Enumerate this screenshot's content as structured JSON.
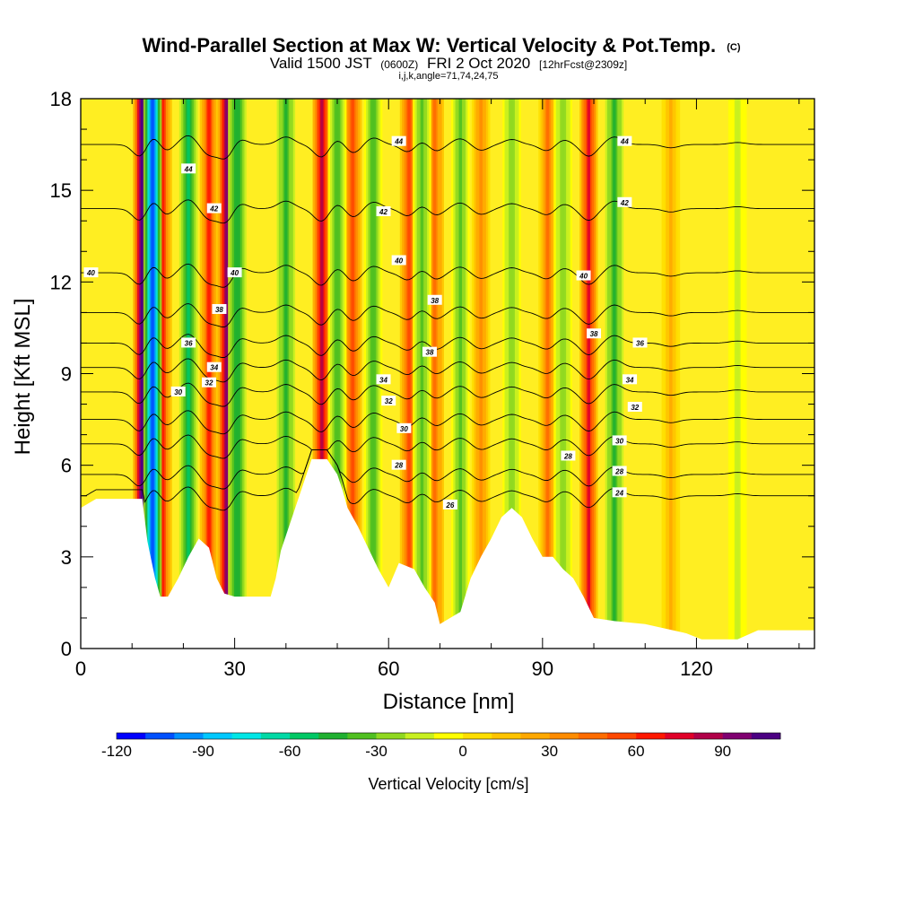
{
  "chart_data": {
    "type": "heatmap",
    "title": "Wind-Parallel Section at Max W: Vertical Velocity & Pot.Temp.",
    "title_mark": "(C)",
    "subtitle_parts": [
      "Valid 1500 JST",
      "(0600Z)",
      "FRI 2 Oct 2020",
      "[12hrFcst@2309z]"
    ],
    "subtitle2": "i,j,k,angle=71,74,24,75",
    "xlabel": "Distance [nm]",
    "ylabel": "Height [Kft MSL]",
    "xlim": [
      0,
      143
    ],
    "ylim": [
      0,
      18
    ],
    "x_ticks": [
      0,
      30,
      60,
      90,
      120
    ],
    "y_ticks": [
      0,
      3,
      6,
      9,
      12,
      15,
      18
    ],
    "colorbar": {
      "label": "Vertical Velocity [cm/s]",
      "ticks": [
        -120,
        -90,
        -60,
        -30,
        0,
        30,
        60,
        90
      ],
      "range": [
        -120,
        110
      ],
      "colors": [
        "#0000ff",
        "#0050ff",
        "#0090ff",
        "#00c8ff",
        "#00e6e6",
        "#00d9a5",
        "#00c864",
        "#20b030",
        "#50c020",
        "#90d820",
        "#c8f020",
        "#ffff00",
        "#ffde00",
        "#ffc400",
        "#ffa800",
        "#ff8c00",
        "#ff6c00",
        "#ff4800",
        "#ff1800",
        "#e00028",
        "#b00048",
        "#800070",
        "#4b0082"
      ]
    },
    "updrafts": [
      {
        "x": 12,
        "w": 110
      },
      {
        "x": 16,
        "w": 60
      },
      {
        "x": 25,
        "w": 60
      },
      {
        "x": 28.5,
        "w": 95
      },
      {
        "x": 47,
        "w": 80
      },
      {
        "x": 53,
        "w": 55
      },
      {
        "x": 64,
        "w": 50
      },
      {
        "x": 69,
        "w": 45
      },
      {
        "x": 78,
        "w": 35
      },
      {
        "x": 91,
        "w": 40
      },
      {
        "x": 99,
        "w": 70
      },
      {
        "x": 115,
        "w": 20
      }
    ],
    "downdrafts": [
      {
        "x": 14,
        "w": -110
      },
      {
        "x": 21,
        "w": -55
      },
      {
        "x": 30.5,
        "w": -50
      },
      {
        "x": 40,
        "w": -45
      },
      {
        "x": 50,
        "w": -40
      },
      {
        "x": 57,
        "w": -40
      },
      {
        "x": 66.5,
        "w": -35
      },
      {
        "x": 74,
        "w": -35
      },
      {
        "x": 84,
        "w": -30
      },
      {
        "x": 94,
        "w": -30
      },
      {
        "x": 104,
        "w": -45
      },
      {
        "x": 128,
        "w": -12
      }
    ],
    "terrain": [
      [
        0,
        4.6
      ],
      [
        3,
        4.9
      ],
      [
        12,
        4.9
      ],
      [
        13,
        3.5
      ],
      [
        14.5,
        2.3
      ],
      [
        15.5,
        1.7
      ],
      [
        17,
        1.7
      ],
      [
        19,
        2.3
      ],
      [
        21,
        3
      ],
      [
        23,
        3.6
      ],
      [
        25,
        3.3
      ],
      [
        26.5,
        2.3
      ],
      [
        28,
        1.8
      ],
      [
        30,
        1.7
      ],
      [
        33,
        1.7
      ],
      [
        37,
        1.7
      ],
      [
        38,
        2.3
      ],
      [
        39,
        3.2
      ],
      [
        41,
        4.2
      ],
      [
        43,
        5.2
      ],
      [
        45,
        6.2
      ],
      [
        48,
        6.2
      ],
      [
        50,
        5.7
      ],
      [
        51,
        5.2
      ],
      [
        52,
        4.6
      ],
      [
        54,
        4.0
      ],
      [
        56,
        3.3
      ],
      [
        58,
        2.6
      ],
      [
        60,
        2.0
      ],
      [
        62,
        2.8
      ],
      [
        65,
        2.6
      ],
      [
        67,
        2.0
      ],
      [
        69,
        1.5
      ],
      [
        70,
        0.8
      ],
      [
        72,
        1.0
      ],
      [
        74,
        1.2
      ],
      [
        76,
        2.3
      ],
      [
        78,
        3.0
      ],
      [
        80,
        3.6
      ],
      [
        82,
        4.3
      ],
      [
        84,
        4.6
      ],
      [
        86,
        4.3
      ],
      [
        88,
        3.6
      ],
      [
        90,
        3.0
      ],
      [
        92,
        3.0
      ],
      [
        94,
        2.6
      ],
      [
        96,
        2.3
      ],
      [
        98,
        1.7
      ],
      [
        100,
        1.0
      ],
      [
        104,
        0.9
      ],
      [
        110,
        0.8
      ],
      [
        118,
        0.5
      ],
      [
        121,
        0.3
      ],
      [
        128,
        0.3
      ],
      [
        132,
        0.6
      ],
      [
        136,
        0.6
      ],
      [
        143,
        0.6
      ]
    ],
    "isentropes": [
      {
        "theta": 24,
        "base": 5.0
      },
      {
        "theta": 26,
        "base": 5.7
      },
      {
        "theta": 28,
        "base": 6.7
      },
      {
        "theta": 30,
        "base": 7.5
      },
      {
        "theta": 32,
        "base": 8.4
      },
      {
        "theta": 34,
        "base": 9.2
      },
      {
        "theta": 36,
        "base": 10.0
      },
      {
        "theta": 38,
        "base": 11.0
      },
      {
        "theta": 40,
        "base": 12.3
      },
      {
        "theta": 42,
        "base": 14.4
      },
      {
        "theta": 44,
        "base": 16.5
      }
    ],
    "contour_labels": [
      {
        "text": "44",
        "x": 21,
        "y": 15.7
      },
      {
        "text": "42",
        "x": 26,
        "y": 14.4
      },
      {
        "text": "40",
        "x": 2,
        "y": 12.3
      },
      {
        "text": "40",
        "x": 30,
        "y": 12.3
      },
      {
        "text": "38",
        "x": 27,
        "y": 11.1
      },
      {
        "text": "36",
        "x": 21,
        "y": 10.0
      },
      {
        "text": "34",
        "x": 26,
        "y": 9.2
      },
      {
        "text": "32",
        "x": 25,
        "y": 8.7
      },
      {
        "text": "30",
        "x": 19,
        "y": 8.4
      },
      {
        "text": "44",
        "x": 62,
        "y": 16.6
      },
      {
        "text": "42",
        "x": 59,
        "y": 14.3
      },
      {
        "text": "40",
        "x": 62,
        "y": 12.7
      },
      {
        "text": "38",
        "x": 69,
        "y": 11.4
      },
      {
        "text": "38",
        "x": 68,
        "y": 9.7
      },
      {
        "text": "34",
        "x": 59,
        "y": 8.8
      },
      {
        "text": "32",
        "x": 60,
        "y": 8.1
      },
      {
        "text": "30",
        "x": 63,
        "y": 7.2
      },
      {
        "text": "28",
        "x": 62,
        "y": 6.0
      },
      {
        "text": "26",
        "x": 72,
        "y": 4.7
      },
      {
        "text": "44",
        "x": 106,
        "y": 16.6
      },
      {
        "text": "42",
        "x": 106,
        "y": 14.6
      },
      {
        "text": "40",
        "x": 98,
        "y": 12.2
      },
      {
        "text": "38",
        "x": 100,
        "y": 10.3
      },
      {
        "text": "36",
        "x": 109,
        "y": 10.0
      },
      {
        "text": "34",
        "x": 107,
        "y": 8.8
      },
      {
        "text": "32",
        "x": 108,
        "y": 7.9
      },
      {
        "text": "30",
        "x": 105,
        "y": 6.8
      },
      {
        "text": "28",
        "x": 95,
        "y": 6.3
      },
      {
        "text": "28",
        "x": 105,
        "y": 5.8
      },
      {
        "text": "24",
        "x": 105,
        "y": 5.1
      }
    ]
  }
}
